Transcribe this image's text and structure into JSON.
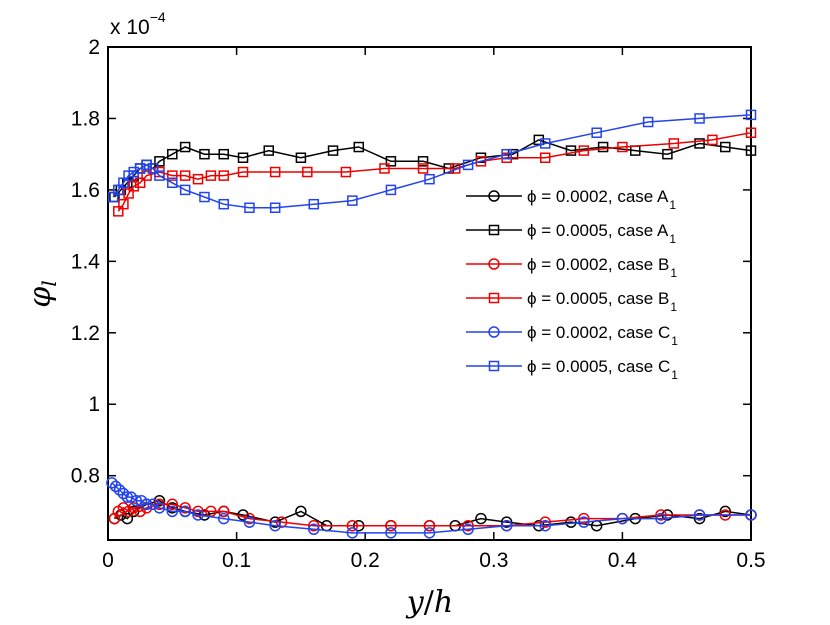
{
  "chart_data": {
    "type": "line",
    "xlabel_main": "y",
    "xlabel_sep": "/",
    "xlabel_sub": "h",
    "ylabel_main": "φ",
    "ylabel_sub": "l",
    "xlim": [
      0,
      0.5
    ],
    "ylim": [
      0.62,
      2.0
    ],
    "y_scale_base": "x 10",
    "y_scale_exponent": "−4",
    "x_ticks": [
      0,
      0.1,
      0.2,
      0.3,
      0.4,
      0.5
    ],
    "x_tick_labels": [
      "0",
      "0.1",
      "0.2",
      "0.3",
      "0.4",
      "0.5"
    ],
    "y_ticks": [
      0.8,
      1.0,
      1.2,
      1.4,
      1.6,
      1.8,
      2.0
    ],
    "y_tick_labels": [
      "0.8",
      "1",
      "1.2",
      "1.4",
      "1.6",
      "1.8",
      "2"
    ],
    "grid": false,
    "legend_position": "center-right",
    "series": [
      {
        "name": "A1_0002",
        "legend_main": "ϕ = 0.0002, case A",
        "legend_sub": "1",
        "color": "#000000",
        "marker": "circle",
        "x": [
          0.005,
          0.01,
          0.015,
          0.02,
          0.03,
          0.04,
          0.05,
          0.06,
          0.075,
          0.09,
          0.105,
          0.13,
          0.15,
          0.17,
          0.195,
          0.22,
          0.25,
          0.27,
          0.29,
          0.31,
          0.335,
          0.36,
          0.38,
          0.41,
          0.435,
          0.46,
          0.48,
          0.5
        ],
        "values": [
          0.68,
          0.69,
          0.68,
          0.7,
          0.72,
          0.73,
          0.71,
          0.7,
          0.69,
          0.7,
          0.69,
          0.67,
          0.7,
          0.66,
          0.66,
          0.66,
          0.66,
          0.66,
          0.68,
          0.67,
          0.66,
          0.67,
          0.66,
          0.68,
          0.69,
          0.68,
          0.7,
          0.69
        ]
      },
      {
        "name": "A1_0005",
        "legend_main": "ϕ = 0.0005, case A",
        "legend_sub": "1",
        "color": "#000000",
        "marker": "square",
        "x": [
          0.005,
          0.01,
          0.015,
          0.02,
          0.025,
          0.03,
          0.035,
          0.04,
          0.05,
          0.06,
          0.075,
          0.09,
          0.105,
          0.125,
          0.15,
          0.175,
          0.195,
          0.22,
          0.245,
          0.265,
          0.29,
          0.315,
          0.335,
          0.36,
          0.385,
          0.41,
          0.435,
          0.46,
          0.48,
          0.5
        ],
        "values": [
          1.58,
          1.6,
          1.62,
          1.64,
          1.66,
          1.67,
          1.66,
          1.68,
          1.7,
          1.72,
          1.7,
          1.7,
          1.69,
          1.71,
          1.69,
          1.71,
          1.72,
          1.68,
          1.68,
          1.66,
          1.69,
          1.7,
          1.74,
          1.71,
          1.72,
          1.71,
          1.7,
          1.73,
          1.72,
          1.71
        ]
      },
      {
        "name": "B1_0002",
        "legend_main": "ϕ = 0.0002, case B",
        "legend_sub": "1",
        "color": "#ee0000",
        "marker": "circle",
        "x": [
          0.005,
          0.008,
          0.012,
          0.016,
          0.02,
          0.025,
          0.03,
          0.04,
          0.05,
          0.06,
          0.07,
          0.08,
          0.09,
          0.11,
          0.135,
          0.16,
          0.19,
          0.22,
          0.25,
          0.28,
          0.31,
          0.34,
          0.37,
          0.4,
          0.43,
          0.46,
          0.48,
          0.5
        ],
        "values": [
          0.68,
          0.7,
          0.71,
          0.7,
          0.71,
          0.7,
          0.71,
          0.72,
          0.72,
          0.71,
          0.7,
          0.7,
          0.7,
          0.68,
          0.67,
          0.66,
          0.66,
          0.66,
          0.66,
          0.66,
          0.66,
          0.67,
          0.68,
          0.68,
          0.69,
          0.69,
          0.69,
          0.69
        ]
      },
      {
        "name": "B1_0005",
        "legend_main": "ϕ = 0.0005, case B",
        "legend_sub": "1",
        "color": "#ee0000",
        "marker": "square",
        "x": [
          0.008,
          0.012,
          0.016,
          0.02,
          0.025,
          0.03,
          0.04,
          0.05,
          0.06,
          0.07,
          0.08,
          0.09,
          0.105,
          0.13,
          0.155,
          0.185,
          0.215,
          0.245,
          0.27,
          0.29,
          0.31,
          0.34,
          0.37,
          0.4,
          0.44,
          0.47,
          0.5
        ],
        "values": [
          1.54,
          1.56,
          1.59,
          1.61,
          1.62,
          1.64,
          1.65,
          1.64,
          1.64,
          1.63,
          1.64,
          1.64,
          1.65,
          1.65,
          1.65,
          1.65,
          1.66,
          1.66,
          1.66,
          1.68,
          1.69,
          1.69,
          1.71,
          1.72,
          1.73,
          1.74,
          1.76
        ]
      },
      {
        "name": "C1_0002",
        "legend_main": "ϕ = 0.0002, case C",
        "legend_sub": "1",
        "color": "#2244ee",
        "marker": "circle",
        "x": [
          0.003,
          0.006,
          0.009,
          0.012,
          0.015,
          0.018,
          0.022,
          0.026,
          0.03,
          0.035,
          0.04,
          0.05,
          0.06,
          0.07,
          0.09,
          0.11,
          0.13,
          0.16,
          0.19,
          0.22,
          0.25,
          0.28,
          0.31,
          0.34,
          0.37,
          0.4,
          0.43,
          0.46,
          0.5
        ],
        "values": [
          0.78,
          0.77,
          0.76,
          0.75,
          0.74,
          0.74,
          0.73,
          0.73,
          0.72,
          0.72,
          0.71,
          0.7,
          0.7,
          0.69,
          0.68,
          0.67,
          0.66,
          0.65,
          0.64,
          0.64,
          0.64,
          0.65,
          0.66,
          0.66,
          0.67,
          0.68,
          0.68,
          0.69,
          0.69
        ]
      },
      {
        "name": "C1_0005",
        "legend_main": "ϕ = 0.0005, case C",
        "legend_sub": "1",
        "color": "#2244ee",
        "marker": "square",
        "x": [
          0.004,
          0.008,
          0.012,
          0.016,
          0.02,
          0.025,
          0.03,
          0.035,
          0.04,
          0.05,
          0.06,
          0.075,
          0.09,
          0.11,
          0.13,
          0.16,
          0.19,
          0.22,
          0.25,
          0.28,
          0.31,
          0.34,
          0.38,
          0.42,
          0.46,
          0.5
        ],
        "values": [
          1.58,
          1.6,
          1.62,
          1.64,
          1.65,
          1.66,
          1.67,
          1.66,
          1.64,
          1.62,
          1.6,
          1.58,
          1.56,
          1.55,
          1.55,
          1.56,
          1.57,
          1.6,
          1.63,
          1.67,
          1.7,
          1.73,
          1.76,
          1.79,
          1.8,
          1.81
        ]
      }
    ]
  }
}
